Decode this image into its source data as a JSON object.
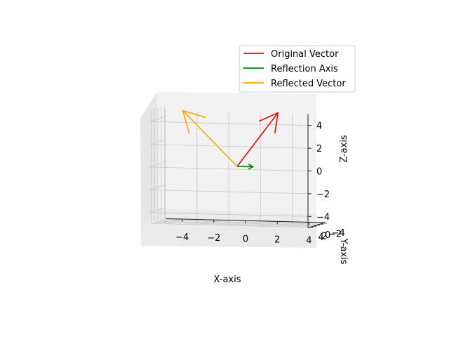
{
  "chart_data": {
    "type": "3d-quiver",
    "title": "",
    "xlabel": "X-axis",
    "ylabel": "Y-axis",
    "zlabel": "Z-axis",
    "xlim": [
      -5,
      5
    ],
    "ylim": [
      -5,
      5
    ],
    "zlim": [
      -5,
      5
    ],
    "xticks": [
      "−4",
      "−2",
      "0",
      "2",
      "4"
    ],
    "yticks": [
      "−4",
      "−2",
      "0",
      "2",
      "4"
    ],
    "zticks": [
      "−4",
      "−2",
      "0",
      "2",
      "4"
    ],
    "grid": true,
    "legend_position": "top-right",
    "series": [
      {
        "name": "Original Vector",
        "color": "#ff0000",
        "origin": [
          0,
          0,
          0
        ],
        "vector": [
          3,
          4,
          5
        ]
      },
      {
        "name": "Reflection Axis",
        "color": "#008000",
        "origin": [
          0,
          0,
          0
        ],
        "vector": [
          1,
          0,
          0
        ]
      },
      {
        "name": "Reflected Vector",
        "color": "#ffa500",
        "origin": [
          0,
          0,
          0
        ],
        "vector": [
          -3,
          4,
          5
        ]
      }
    ]
  }
}
